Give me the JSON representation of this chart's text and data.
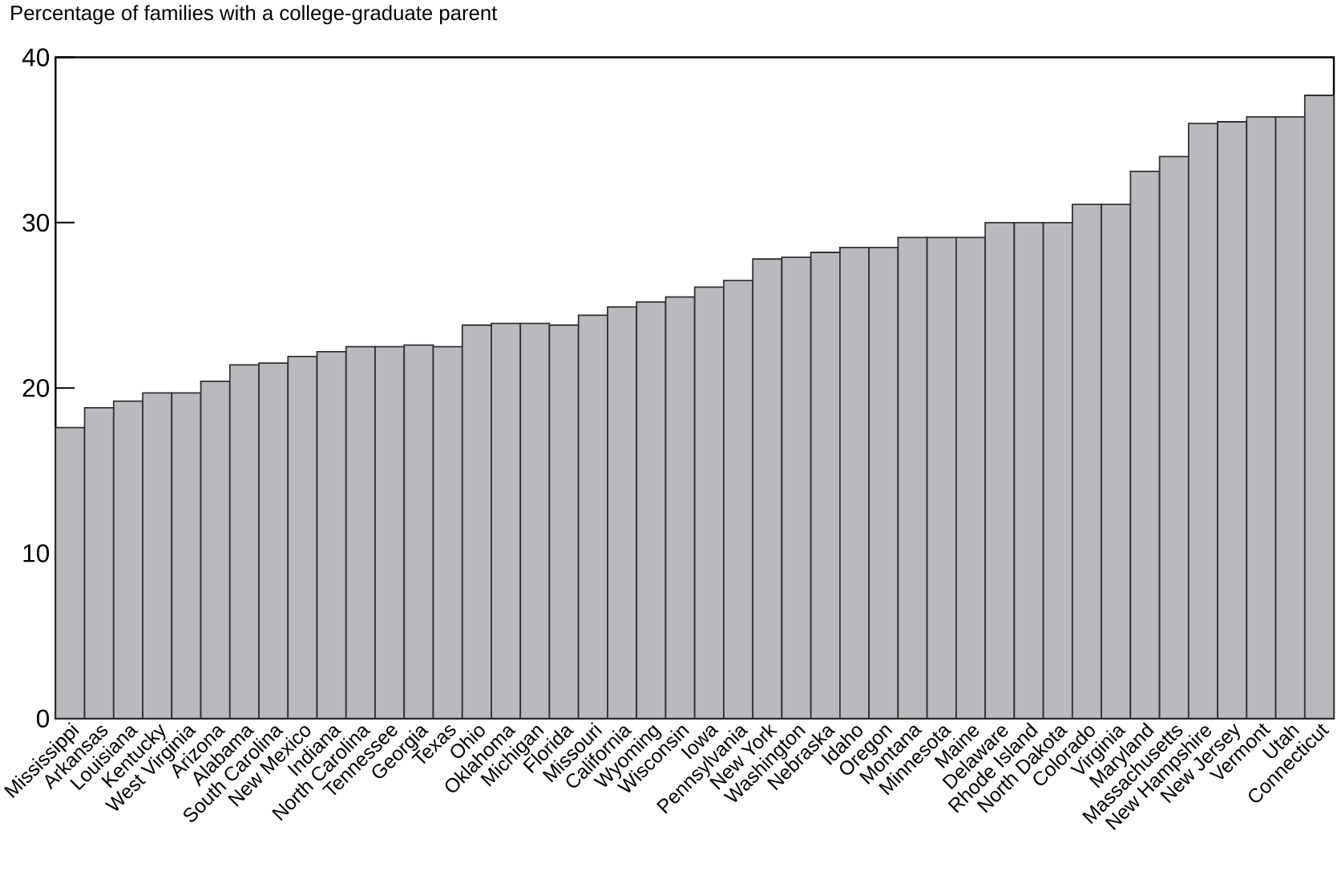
{
  "chart_data": {
    "type": "bar",
    "title": "Percentage of families with a college-graduate parent",
    "categories": [
      "Mississippi",
      "Arkansas",
      "Louisiana",
      "Kentucky",
      "West Virginia",
      "Arizona",
      "Alabama",
      "South Carolina",
      "New Mexico",
      "Indiana",
      "North Carolina",
      "Tennessee",
      "Georgia",
      "Texas",
      "Ohio",
      "Oklahoma",
      "Michigan",
      "Florida",
      "Missouri",
      "California",
      "Wyoming",
      "Wisconsin",
      "Iowa",
      "Pennsylvania",
      "New York",
      "Washington",
      "Nebraska",
      "Idaho",
      "Oregon",
      "Montana",
      "Minnesota",
      "Maine",
      "Delaware",
      "Rhode Island",
      "North Dakota",
      "Colorado",
      "Virginia",
      "Maryland",
      "Massachusetts",
      "New Hampshire",
      "New Jersey",
      "Vermont",
      "Utah",
      "Connecticut"
    ],
    "values": [
      17.6,
      18.8,
      19.2,
      19.7,
      19.7,
      20.4,
      21.4,
      21.5,
      21.9,
      22.2,
      22.5,
      22.5,
      22.6,
      22.5,
      23.8,
      23.9,
      23.9,
      23.8,
      24.4,
      24.9,
      25.2,
      25.5,
      26.1,
      26.5,
      27.8,
      27.9,
      28.2,
      28.5,
      28.5,
      29.1,
      29.1,
      29.1,
      30.0,
      30.0,
      30.0,
      31.1,
      31.1,
      33.1,
      34.0,
      36.0,
      36.1,
      36.4,
      36.4,
      37.7
    ],
    "color": "#b9babd",
    "ylim": [
      0,
      40
    ],
    "yticks": [
      0,
      10,
      20,
      30,
      40
    ]
  }
}
